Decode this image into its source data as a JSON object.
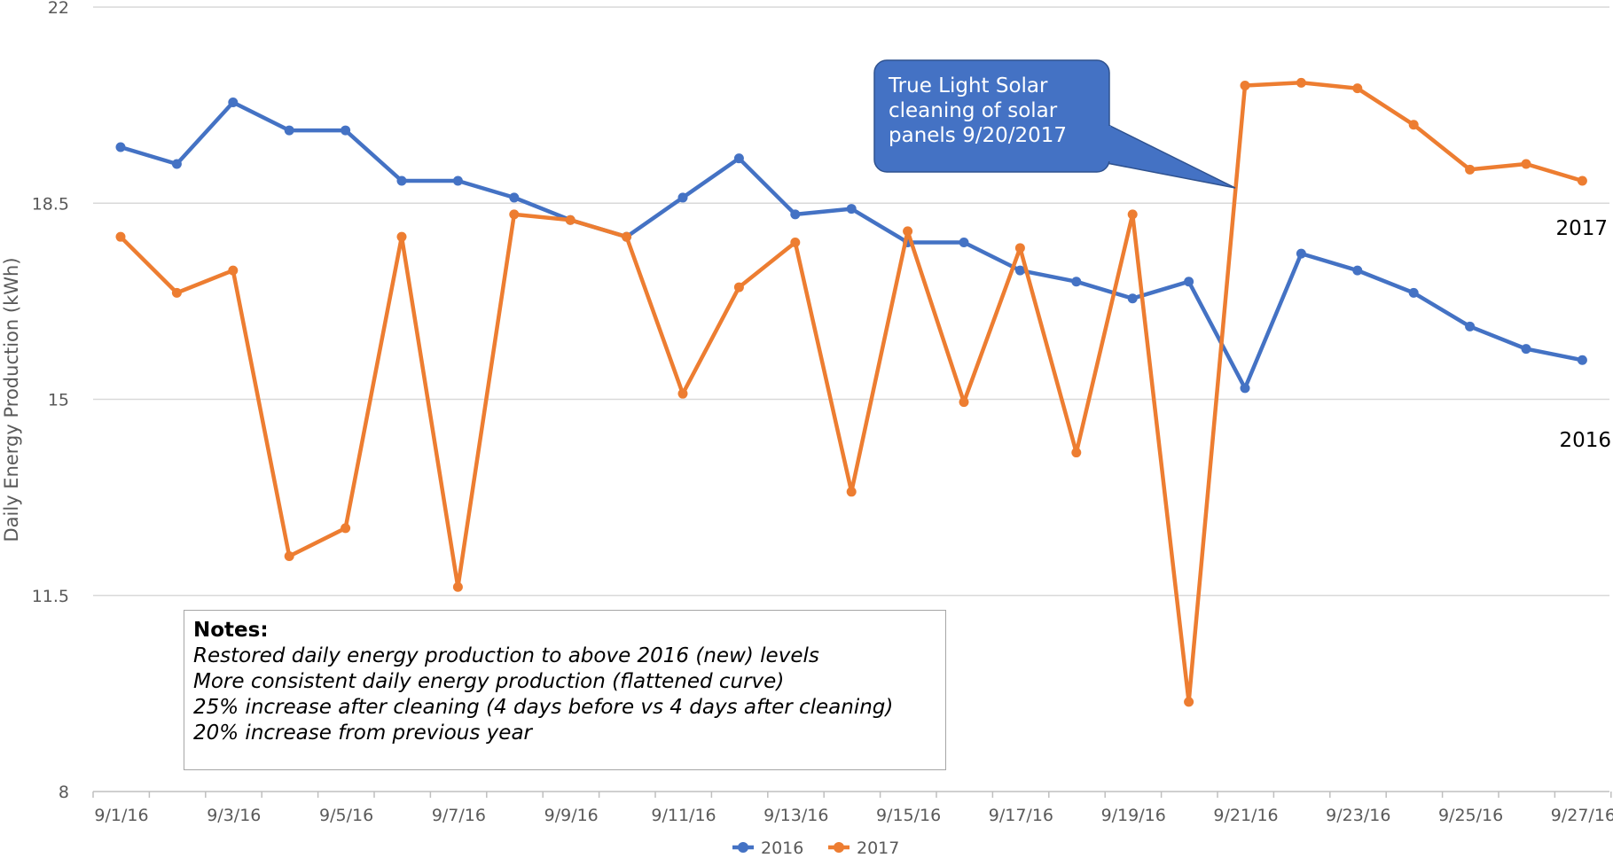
{
  "chart_data": {
    "type": "line",
    "x": [
      "9/1/16",
      "9/2/16",
      "9/3/16",
      "9/4/16",
      "9/5/16",
      "9/6/16",
      "9/7/16",
      "9/8/16",
      "9/9/16",
      "9/10/16",
      "9/11/16",
      "9/12/16",
      "9/13/16",
      "9/14/16",
      "9/15/16",
      "9/16/16",
      "9/17/16",
      "9/18/16",
      "9/19/16",
      "9/20/16",
      "9/21/16",
      "9/22/16",
      "9/23/16",
      "9/24/16",
      "9/25/16",
      "9/26/16",
      "9/27/16"
    ],
    "x_tick_labels": [
      "9/1/16",
      "9/3/16",
      "9/5/16",
      "9/7/16",
      "9/9/16",
      "9/11/16",
      "9/13/16",
      "9/15/16",
      "9/17/16",
      "9/19/16",
      "9/21/16",
      "9/23/16",
      "9/25/16",
      "9/27/16"
    ],
    "series": [
      {
        "name": "2016",
        "color": "#4472c4",
        "values": [
          19.5,
          19.2,
          20.3,
          19.8,
          19.8,
          18.9,
          18.9,
          18.6,
          18.2,
          17.9,
          18.6,
          19.3,
          18.3,
          18.4,
          17.8,
          17.8,
          17.3,
          17.1,
          16.8,
          17.1,
          15.2,
          17.6,
          17.3,
          16.9,
          16.3,
          15.9,
          15.7
        ]
      },
      {
        "name": "2017",
        "color": "#ed7d31",
        "values": [
          17.9,
          16.9,
          17.3,
          12.2,
          12.7,
          17.9,
          11.65,
          18.3,
          18.2,
          17.9,
          15.1,
          17.0,
          17.8,
          13.35,
          18.0,
          14.95,
          17.7,
          14.05,
          18.3,
          9.6,
          20.6,
          20.65,
          20.55,
          19.9,
          19.1,
          19.2,
          18.9
        ]
      }
    ],
    "ylabel": "Daily Energy Production (kWh)",
    "xlabel": "",
    "ylim": [
      8,
      22
    ],
    "y_ticks": [
      "8",
      "11.5",
      "15",
      "18.5",
      "22"
    ],
    "y_tick_values": [
      8,
      11.5,
      15,
      18.5,
      22
    ],
    "grid": true,
    "legend_position": "bottom",
    "series_end_labels": [
      "2017",
      "2016"
    ],
    "callout": {
      "lines": [
        "True Light Solar",
        "cleaning of solar",
        "panels 9/20/2017"
      ],
      "color": "#4472c4"
    }
  },
  "notes": {
    "title": "Notes:",
    "lines": [
      "Restored daily energy production to above 2016 (new) levels",
      "More consistent daily energy production (flattened curve)",
      "25% increase after cleaning (4 days before vs 4 days after cleaning)",
      "20% increase from previous year"
    ]
  }
}
